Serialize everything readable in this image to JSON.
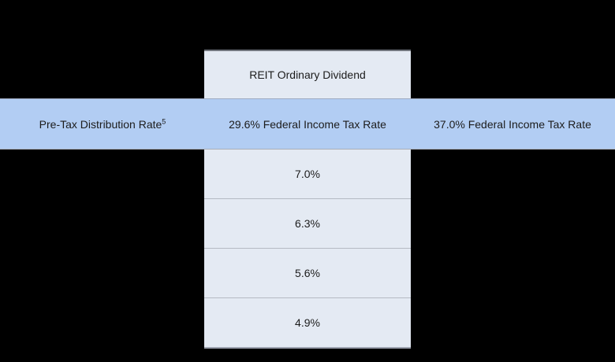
{
  "chart_data": {
    "type": "table",
    "title": "REIT Ordinary Dividend",
    "header_row": {
      "col1": "Pre-Tax Distribution Rate",
      "col1_superscript": "5",
      "col2": "29.6% Federal Income Tax Rate",
      "col3": "37.0% Federal Income Tax Rate"
    },
    "col2_values": [
      "7.0%",
      "6.3%",
      "5.6%",
      "4.9%"
    ],
    "layout_hints": {
      "column_group_header_over": "col2",
      "visible_values_column": "29.6% Federal Income Tax Rate",
      "grid": "horizontal separators in center column only"
    }
  },
  "colors": {
    "background": "#000000",
    "column_bg": "#e4eaf3",
    "band_bg": "#b2cdf3",
    "separator": "#b5bac3",
    "text": "#1c1c1c"
  }
}
